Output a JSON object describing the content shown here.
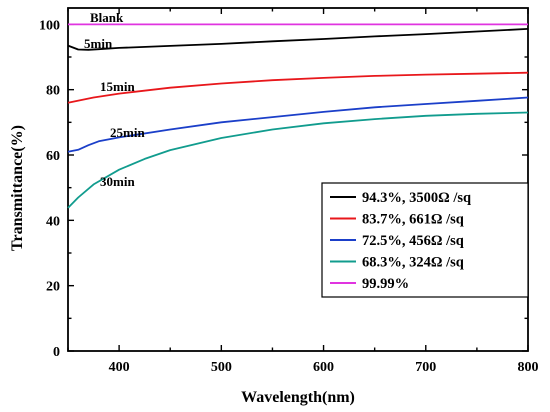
{
  "chart_data": {
    "type": "line",
    "xlabel": "Wavelength(nm)",
    "ylabel": "Transmittance(%)",
    "xlim": [
      350,
      800
    ],
    "ylim": [
      0,
      105
    ],
    "xticks": [
      400,
      500,
      600,
      700,
      800
    ],
    "yticks": [
      0,
      20,
      40,
      60,
      80,
      100
    ],
    "grid": false,
    "legend_position": "center-right",
    "series": [
      {
        "name": "94.3%, 3500Ω /sq",
        "annotation": "5min",
        "color": "#000000",
        "x": [
          350,
          360,
          370,
          380,
          400,
          450,
          500,
          550,
          600,
          650,
          700,
          750,
          800
        ],
        "y": [
          93.5,
          92.3,
          92.2,
          92.4,
          92.8,
          93.4,
          94.0,
          94.8,
          95.5,
          96.3,
          97.0,
          97.8,
          98.6
        ]
      },
      {
        "name": "83.7%, 661Ω /sq",
        "annotation": "15min",
        "color": "#e8171b",
        "x": [
          350,
          375,
          400,
          450,
          500,
          550,
          600,
          650,
          700,
          750,
          800
        ],
        "y": [
          76.0,
          77.6,
          78.8,
          80.6,
          81.9,
          82.9,
          83.6,
          84.2,
          84.6,
          84.9,
          85.2
        ]
      },
      {
        "name": "72.5%, 456Ω /sq",
        "annotation": "25min",
        "color": "#1b3fc9",
        "x": [
          350,
          360,
          370,
          380,
          400,
          450,
          500,
          550,
          600,
          650,
          700,
          750,
          800
        ],
        "y": [
          61.0,
          61.6,
          63.0,
          64.2,
          65.4,
          67.8,
          70.0,
          71.6,
          73.2,
          74.6,
          75.6,
          76.6,
          77.6
        ]
      },
      {
        "name": "68.3%, 324Ω /sq",
        "annotation": "30min",
        "color": "#119c8e",
        "x": [
          350,
          360,
          375,
          400,
          425,
          450,
          500,
          550,
          600,
          650,
          700,
          750,
          800
        ],
        "y": [
          43.8,
          47.0,
          51.0,
          55.5,
          58.8,
          61.5,
          65.2,
          67.8,
          69.7,
          71.0,
          72.0,
          72.6,
          73.0
        ]
      },
      {
        "name": "99.99%",
        "annotation": "Blank",
        "color": "#e034e0",
        "x": [
          350,
          500,
          650,
          800
        ],
        "y": [
          99.99,
          99.99,
          99.99,
          99.99
        ]
      }
    ]
  }
}
